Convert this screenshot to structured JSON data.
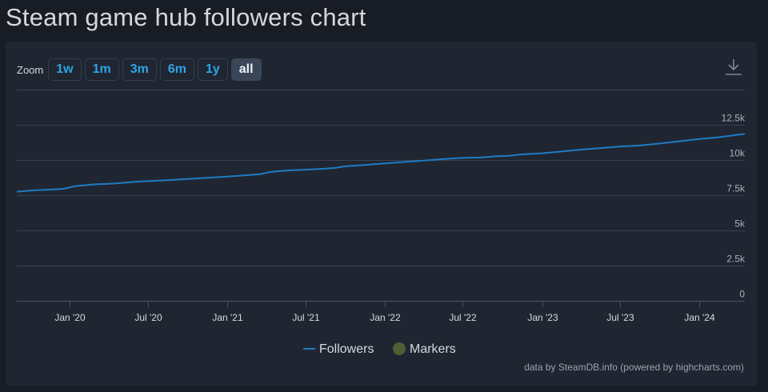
{
  "page": {
    "title": "Steam game hub followers chart"
  },
  "zoom": {
    "label": "Zoom",
    "buttons": [
      {
        "label": "1w",
        "active": false
      },
      {
        "label": "1m",
        "active": false
      },
      {
        "label": "3m",
        "active": false
      },
      {
        "label": "6m",
        "active": false
      },
      {
        "label": "1y",
        "active": false
      },
      {
        "label": "all",
        "active": true
      }
    ]
  },
  "toolbar": {
    "download_icon": "download-icon"
  },
  "credits": "data by SteamDB.info (powered by highcharts.com)",
  "colors": {
    "background": "#181c24",
    "panel": "#1f2632",
    "accent": "#2ea3e6",
    "series_followers": "#1f7bc1",
    "series_markers": "#4f5f34",
    "gridline": "#3a4250",
    "text": "#d4d8de",
    "axis_text": "#a8b0ba"
  },
  "chart_data": {
    "type": "line",
    "title": "",
    "xlabel": "",
    "ylabel": "",
    "ylim": [
      0,
      15000
    ],
    "xlim": [
      "2019-09-01",
      "2024-04-15"
    ],
    "yticks": [
      {
        "value": 0,
        "label": "0"
      },
      {
        "value": 2500,
        "label": "2.5k"
      },
      {
        "value": 5000,
        "label": "5k"
      },
      {
        "value": 7500,
        "label": "7.5k"
      },
      {
        "value": 10000,
        "label": "10k"
      },
      {
        "value": 12500,
        "label": "12.5k"
      }
    ],
    "xticks": [
      {
        "date": "2020-01-01",
        "label": "Jan '20"
      },
      {
        "date": "2020-07-01",
        "label": "Jul '20"
      },
      {
        "date": "2021-01-01",
        "label": "Jan '21"
      },
      {
        "date": "2021-07-01",
        "label": "Jul '21"
      },
      {
        "date": "2022-01-01",
        "label": "Jan '22"
      },
      {
        "date": "2022-07-01",
        "label": "Jul '22"
      },
      {
        "date": "2023-01-01",
        "label": "Jan '23"
      },
      {
        "date": "2023-07-01",
        "label": "Jul '23"
      },
      {
        "date": "2024-01-01",
        "label": "Jan '24"
      }
    ],
    "grid": true,
    "legend_position": "bottom-center",
    "series": [
      {
        "name": "Followers",
        "x": [
          "2019-09-01",
          "2019-10-15",
          "2019-12-01",
          "2019-12-20",
          "2020-01-15",
          "2020-03-01",
          "2020-04-15",
          "2020-06-01",
          "2020-07-01",
          "2020-08-15",
          "2020-10-01",
          "2020-11-15",
          "2021-01-01",
          "2021-02-15",
          "2021-03-20",
          "2021-04-10",
          "2021-05-15",
          "2021-06-15",
          "2021-07-15",
          "2021-08-15",
          "2021-09-10",
          "2021-10-01",
          "2021-11-15",
          "2022-01-01",
          "2022-02-15",
          "2022-04-01",
          "2022-05-15",
          "2022-07-01",
          "2022-08-15",
          "2022-09-15",
          "2022-10-15",
          "2022-11-15",
          "2023-01-01",
          "2023-02-15",
          "2023-04-01",
          "2023-05-15",
          "2023-07-01",
          "2023-08-15",
          "2023-10-01",
          "2023-11-15",
          "2024-01-01",
          "2024-02-15",
          "2024-04-15"
        ],
        "values": [
          7750,
          7850,
          7920,
          7960,
          8150,
          8270,
          8330,
          8450,
          8500,
          8560,
          8650,
          8740,
          8820,
          8920,
          9000,
          9150,
          9250,
          9290,
          9330,
          9380,
          9450,
          9550,
          9640,
          9760,
          9860,
          9960,
          10060,
          10150,
          10180,
          10260,
          10300,
          10400,
          10480,
          10600,
          10740,
          10840,
          10960,
          11030,
          11170,
          11330,
          11490,
          11620,
          11850
        ]
      },
      {
        "name": "Markers",
        "x": [],
        "values": []
      }
    ]
  }
}
